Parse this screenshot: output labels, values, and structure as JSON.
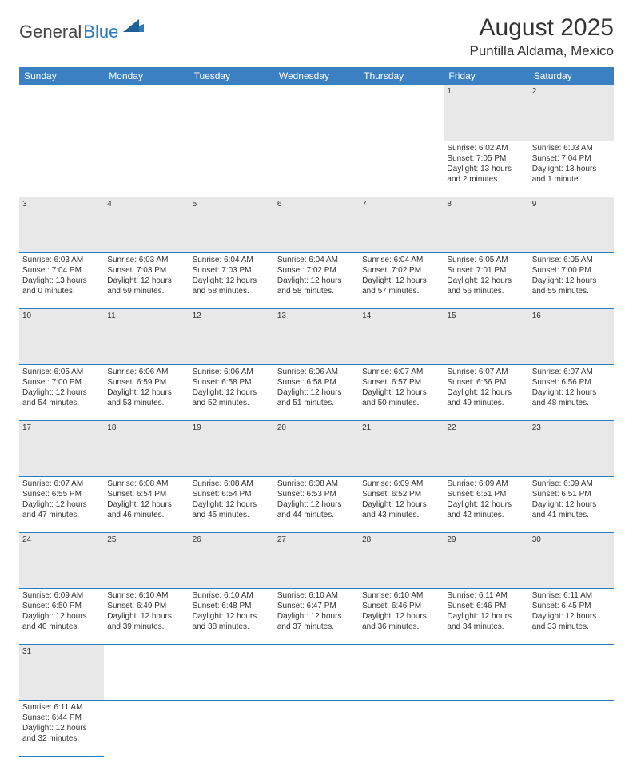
{
  "logo": {
    "general": "General",
    "blue": "Blue"
  },
  "title": "August 2025",
  "location": "Puntilla Aldama, Mexico",
  "colors": {
    "header_bg": "#3a80c3",
    "header_text": "#ffffff",
    "daynum_bg": "#e8e8e8",
    "row_border": "#2b7bbf",
    "logo_blue": "#2b7bbf",
    "text": "#333333"
  },
  "days": [
    "Sunday",
    "Monday",
    "Tuesday",
    "Wednesday",
    "Thursday",
    "Friday",
    "Saturday"
  ],
  "weeks": [
    [
      null,
      null,
      null,
      null,
      null,
      {
        "n": "1",
        "sr": "Sunrise: 6:02 AM",
        "ss": "Sunset: 7:05 PM",
        "d1": "Daylight: 13 hours",
        "d2": "and 2 minutes."
      },
      {
        "n": "2",
        "sr": "Sunrise: 6:03 AM",
        "ss": "Sunset: 7:04 PM",
        "d1": "Daylight: 13 hours",
        "d2": "and 1 minute."
      }
    ],
    [
      {
        "n": "3",
        "sr": "Sunrise: 6:03 AM",
        "ss": "Sunset: 7:04 PM",
        "d1": "Daylight: 13 hours",
        "d2": "and 0 minutes."
      },
      {
        "n": "4",
        "sr": "Sunrise: 6:03 AM",
        "ss": "Sunset: 7:03 PM",
        "d1": "Daylight: 12 hours",
        "d2": "and 59 minutes."
      },
      {
        "n": "5",
        "sr": "Sunrise: 6:04 AM",
        "ss": "Sunset: 7:03 PM",
        "d1": "Daylight: 12 hours",
        "d2": "and 58 minutes."
      },
      {
        "n": "6",
        "sr": "Sunrise: 6:04 AM",
        "ss": "Sunset: 7:02 PM",
        "d1": "Daylight: 12 hours",
        "d2": "and 58 minutes."
      },
      {
        "n": "7",
        "sr": "Sunrise: 6:04 AM",
        "ss": "Sunset: 7:02 PM",
        "d1": "Daylight: 12 hours",
        "d2": "and 57 minutes."
      },
      {
        "n": "8",
        "sr": "Sunrise: 6:05 AM",
        "ss": "Sunset: 7:01 PM",
        "d1": "Daylight: 12 hours",
        "d2": "and 56 minutes."
      },
      {
        "n": "9",
        "sr": "Sunrise: 6:05 AM",
        "ss": "Sunset: 7:00 PM",
        "d1": "Daylight: 12 hours",
        "d2": "and 55 minutes."
      }
    ],
    [
      {
        "n": "10",
        "sr": "Sunrise: 6:05 AM",
        "ss": "Sunset: 7:00 PM",
        "d1": "Daylight: 12 hours",
        "d2": "and 54 minutes."
      },
      {
        "n": "11",
        "sr": "Sunrise: 6:06 AM",
        "ss": "Sunset: 6:59 PM",
        "d1": "Daylight: 12 hours",
        "d2": "and 53 minutes."
      },
      {
        "n": "12",
        "sr": "Sunrise: 6:06 AM",
        "ss": "Sunset: 6:58 PM",
        "d1": "Daylight: 12 hours",
        "d2": "and 52 minutes."
      },
      {
        "n": "13",
        "sr": "Sunrise: 6:06 AM",
        "ss": "Sunset: 6:58 PM",
        "d1": "Daylight: 12 hours",
        "d2": "and 51 minutes."
      },
      {
        "n": "14",
        "sr": "Sunrise: 6:07 AM",
        "ss": "Sunset: 6:57 PM",
        "d1": "Daylight: 12 hours",
        "d2": "and 50 minutes."
      },
      {
        "n": "15",
        "sr": "Sunrise: 6:07 AM",
        "ss": "Sunset: 6:56 PM",
        "d1": "Daylight: 12 hours",
        "d2": "and 49 minutes."
      },
      {
        "n": "16",
        "sr": "Sunrise: 6:07 AM",
        "ss": "Sunset: 6:56 PM",
        "d1": "Daylight: 12 hours",
        "d2": "and 48 minutes."
      }
    ],
    [
      {
        "n": "17",
        "sr": "Sunrise: 6:07 AM",
        "ss": "Sunset: 6:55 PM",
        "d1": "Daylight: 12 hours",
        "d2": "and 47 minutes."
      },
      {
        "n": "18",
        "sr": "Sunrise: 6:08 AM",
        "ss": "Sunset: 6:54 PM",
        "d1": "Daylight: 12 hours",
        "d2": "and 46 minutes."
      },
      {
        "n": "19",
        "sr": "Sunrise: 6:08 AM",
        "ss": "Sunset: 6:54 PM",
        "d1": "Daylight: 12 hours",
        "d2": "and 45 minutes."
      },
      {
        "n": "20",
        "sr": "Sunrise: 6:08 AM",
        "ss": "Sunset: 6:53 PM",
        "d1": "Daylight: 12 hours",
        "d2": "and 44 minutes."
      },
      {
        "n": "21",
        "sr": "Sunrise: 6:09 AM",
        "ss": "Sunset: 6:52 PM",
        "d1": "Daylight: 12 hours",
        "d2": "and 43 minutes."
      },
      {
        "n": "22",
        "sr": "Sunrise: 6:09 AM",
        "ss": "Sunset: 6:51 PM",
        "d1": "Daylight: 12 hours",
        "d2": "and 42 minutes."
      },
      {
        "n": "23",
        "sr": "Sunrise: 6:09 AM",
        "ss": "Sunset: 6:51 PM",
        "d1": "Daylight: 12 hours",
        "d2": "and 41 minutes."
      }
    ],
    [
      {
        "n": "24",
        "sr": "Sunrise: 6:09 AM",
        "ss": "Sunset: 6:50 PM",
        "d1": "Daylight: 12 hours",
        "d2": "and 40 minutes."
      },
      {
        "n": "25",
        "sr": "Sunrise: 6:10 AM",
        "ss": "Sunset: 6:49 PM",
        "d1": "Daylight: 12 hours",
        "d2": "and 39 minutes."
      },
      {
        "n": "26",
        "sr": "Sunrise: 6:10 AM",
        "ss": "Sunset: 6:48 PM",
        "d1": "Daylight: 12 hours",
        "d2": "and 38 minutes."
      },
      {
        "n": "27",
        "sr": "Sunrise: 6:10 AM",
        "ss": "Sunset: 6:47 PM",
        "d1": "Daylight: 12 hours",
        "d2": "and 37 minutes."
      },
      {
        "n": "28",
        "sr": "Sunrise: 6:10 AM",
        "ss": "Sunset: 6:46 PM",
        "d1": "Daylight: 12 hours",
        "d2": "and 36 minutes."
      },
      {
        "n": "29",
        "sr": "Sunrise: 6:11 AM",
        "ss": "Sunset: 6:46 PM",
        "d1": "Daylight: 12 hours",
        "d2": "and 34 minutes."
      },
      {
        "n": "30",
        "sr": "Sunrise: 6:11 AM",
        "ss": "Sunset: 6:45 PM",
        "d1": "Daylight: 12 hours",
        "d2": "and 33 minutes."
      }
    ],
    [
      {
        "n": "31",
        "sr": "Sunrise: 6:11 AM",
        "ss": "Sunset: 6:44 PM",
        "d1": "Daylight: 12 hours",
        "d2": "and 32 minutes."
      },
      null,
      null,
      null,
      null,
      null,
      null
    ]
  ]
}
